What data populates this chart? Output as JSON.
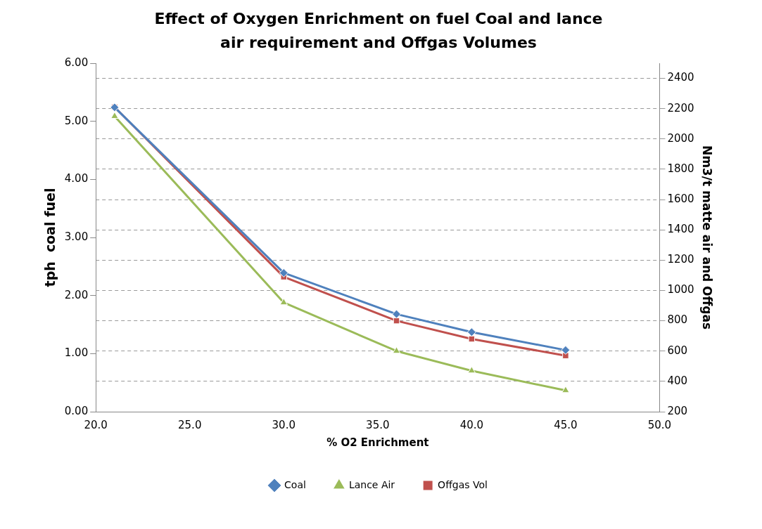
{
  "chart_data": {
    "type": "line",
    "title": "Effect of Oxygen Enrichment on fuel Coal and lance air requirement and Offgas Volumes",
    "xlabel": "% O2 Enrichment",
    "ylabel": "tph  coal fuel",
    "y2label": "Nm3/t matte air and Offgas",
    "x": [
      21,
      30,
      36,
      40,
      45
    ],
    "series": [
      {
        "name": "Offgas Vol",
        "color": "#c0504d",
        "marker": "square",
        "axis": "y2",
        "values": [
          2210,
          1090,
          800,
          680,
          570
        ]
      },
      {
        "name": "Lance Air",
        "color": "#9bbb59",
        "marker": "triangle",
        "axis": "y2",
        "values": [
          2150,
          920,
          600,
          470,
          340
        ]
      },
      {
        "name": "Coal",
        "color": "#4f81bd",
        "marker": "diamond",
        "values": [
          5.24,
          2.39,
          1.68,
          1.37,
          1.06
        ]
      }
    ],
    "xlim": [
      20,
      50
    ],
    "xticks": [
      {
        "value": 20,
        "label": "20.0"
      },
      {
        "value": 25,
        "label": "25.0"
      },
      {
        "value": 30,
        "label": "30.0"
      },
      {
        "value": 35,
        "label": "35.0"
      },
      {
        "value": 40,
        "label": "40.0"
      },
      {
        "value": 45,
        "label": "45.0"
      },
      {
        "value": 50,
        "label": "50.0"
      }
    ],
    "ylim": [
      0,
      6
    ],
    "yticks": [
      {
        "value": 0,
        "label": "0.00"
      },
      {
        "value": 1,
        "label": "1.00"
      },
      {
        "value": 2,
        "label": "2.00"
      },
      {
        "value": 3,
        "label": "3.00"
      },
      {
        "value": 4,
        "label": "4.00"
      },
      {
        "value": 5,
        "label": "5.00"
      },
      {
        "value": 6,
        "label": "6.00"
      }
    ],
    "y2lim": [
      200,
      2500
    ],
    "y2ticks": [
      200,
      400,
      600,
      800,
      1000,
      1200,
      1400,
      1600,
      1800,
      2000,
      2200,
      2400
    ],
    "grid": "y",
    "legend": "bottom",
    "line_style": "solid"
  }
}
